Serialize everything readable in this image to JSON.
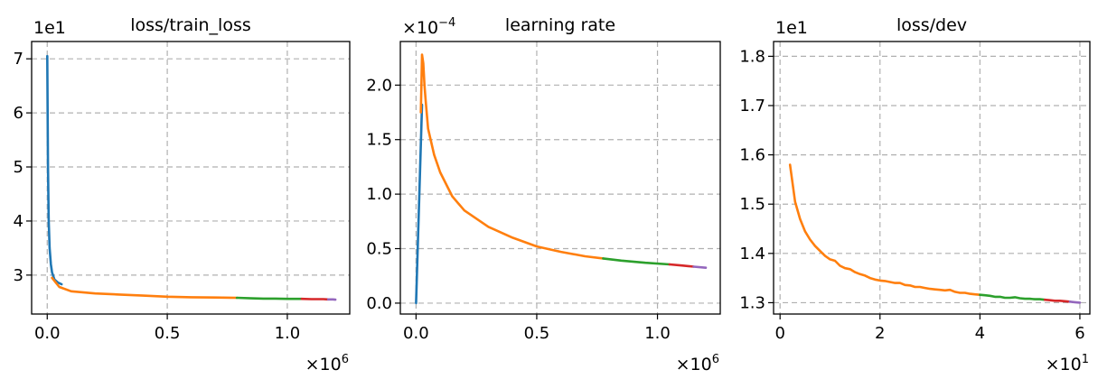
{
  "chart_data": [
    {
      "type": "line",
      "title": "loss/train_loss",
      "xlabel": "",
      "ylabel": "",
      "xlim": [
        -65000,
        1260000
      ],
      "ylim": [
        22.8,
        73.2
      ],
      "x_ticks": [
        0,
        500000,
        1000000
      ],
      "x_tick_labels": [
        "0.0",
        "0.5",
        "1.0"
      ],
      "y_ticks": [
        30,
        40,
        50,
        60,
        70
      ],
      "y_tick_labels": [
        "3",
        "4",
        "5",
        "6",
        "7"
      ],
      "x_offset_label": "×10^6",
      "y_offset_label": "1e1",
      "grid": true,
      "series": [
        {
          "color": "#1f77b4",
          "x": [
            0,
            3000,
            6000,
            10000,
            15000,
            20000,
            30000,
            45000,
            60000
          ],
          "y": [
            70.5,
            50,
            40,
            35,
            32,
            30.5,
            29.2,
            28.6,
            28.3
          ]
        },
        {
          "color": "#ff7f0e",
          "x": [
            20000,
            50000,
            100000,
            200000,
            300000,
            400000,
            500000,
            600000,
            700000,
            790000
          ],
          "y": [
            29.5,
            27.8,
            27.0,
            26.6,
            26.4,
            26.2,
            26.0,
            25.9,
            25.85,
            25.8
          ]
        },
        {
          "color": "#2ca02c",
          "x": [
            790000,
            850000,
            900000,
            950000,
            1000000,
            1060000
          ],
          "y": [
            25.8,
            25.7,
            25.65,
            25.65,
            25.6,
            25.6
          ]
        },
        {
          "color": "#d62728",
          "x": [
            1060000,
            1100000,
            1150000,
            1170000
          ],
          "y": [
            25.6,
            25.55,
            25.55,
            25.5
          ]
        },
        {
          "color": "#9467bd",
          "x": [
            1170000,
            1190000,
            1200000
          ],
          "y": [
            25.5,
            25.5,
            25.45
          ]
        }
      ]
    },
    {
      "type": "line",
      "title": "learning rate",
      "xlabel": "",
      "ylabel": "",
      "xlim": [
        -65000,
        1260000
      ],
      "ylim": [
        -0.1,
        2.4
      ],
      "x_ticks": [
        0,
        500000,
        1000000
      ],
      "x_tick_labels": [
        "0.0",
        "0.5",
        "1.0"
      ],
      "y_ticks": [
        0,
        0.5,
        1.0,
        1.5,
        2.0
      ],
      "y_tick_labels": [
        "0.0",
        "0.5",
        "1.0",
        "1.5",
        "2.0"
      ],
      "x_offset_label": "×10^6",
      "y_offset_label": "×10^−4",
      "grid": true,
      "series": [
        {
          "color": "#1f77b4",
          "x": [
            0,
            25000
          ],
          "y": [
            0.0,
            1.82
          ]
        },
        {
          "color": "#ff7f0e",
          "x": [
            20000,
            25000,
            30000,
            35000,
            40000,
            50000,
            75000,
            100000,
            150000,
            200000,
            300000,
            400000,
            500000,
            600000,
            700000,
            775000
          ],
          "y": [
            1.75,
            2.28,
            2.2,
            2.0,
            1.85,
            1.6,
            1.36,
            1.2,
            0.98,
            0.85,
            0.7,
            0.6,
            0.52,
            0.47,
            0.43,
            0.41
          ]
        },
        {
          "color": "#2ca02c",
          "x": [
            775000,
            850000,
            950000,
            1050000
          ],
          "y": [
            0.41,
            0.39,
            0.37,
            0.355
          ]
        },
        {
          "color": "#d62728",
          "x": [
            1050000,
            1100000,
            1150000
          ],
          "y": [
            0.355,
            0.345,
            0.335
          ]
        },
        {
          "color": "#9467bd",
          "x": [
            1150000,
            1200000
          ],
          "y": [
            0.335,
            0.325
          ]
        }
      ]
    },
    {
      "type": "line",
      "title": "loss/dev",
      "xlabel": "",
      "ylabel": "",
      "xlim": [
        -1.3,
        62.0
      ],
      "ylim": [
        12.77,
        18.3
      ],
      "x_ticks": [
        0,
        20,
        40,
        60
      ],
      "x_tick_labels": [
        "0",
        "2",
        "4",
        "6"
      ],
      "y_ticks": [
        13,
        14,
        15,
        16,
        17,
        18
      ],
      "y_tick_labels": [
        "1.3",
        "1.4",
        "1.5",
        "1.6",
        "1.7",
        "1.8"
      ],
      "x_offset_label": "×10^1",
      "y_offset_label": "1e1",
      "grid": true,
      "series": [
        {
          "color": "#ff7f0e",
          "x": [
            2,
            3,
            4,
            5,
            6,
            7,
            8,
            9,
            10,
            11,
            12,
            13,
            14,
            15,
            16,
            17,
            18,
            19,
            20,
            21,
            22,
            23,
            24,
            25,
            26,
            27,
            28,
            29,
            30,
            31,
            32,
            33,
            34,
            35,
            36,
            37,
            38,
            39,
            40
          ],
          "y": [
            15.8,
            15.05,
            14.7,
            14.45,
            14.28,
            14.15,
            14.05,
            13.95,
            13.88,
            13.85,
            13.75,
            13.7,
            13.68,
            13.62,
            13.58,
            13.55,
            13.5,
            13.47,
            13.45,
            13.44,
            13.42,
            13.4,
            13.4,
            13.36,
            13.35,
            13.32,
            13.32,
            13.3,
            13.28,
            13.27,
            13.26,
            13.25,
            13.26,
            13.22,
            13.2,
            13.2,
            13.18,
            13.17,
            13.16
          ]
        },
        {
          "color": "#2ca02c",
          "x": [
            40,
            41,
            42,
            43,
            44,
            45,
            46,
            47,
            48,
            49,
            50,
            51,
            52,
            53
          ],
          "y": [
            13.16,
            13.15,
            13.14,
            13.12,
            13.12,
            13.1,
            13.1,
            13.11,
            13.09,
            13.08,
            13.08,
            13.07,
            13.07,
            13.06
          ]
        },
        {
          "color": "#d62728",
          "x": [
            53,
            54,
            55,
            56,
            57,
            58
          ],
          "y": [
            13.06,
            13.05,
            13.04,
            13.04,
            13.03,
            13.02
          ]
        },
        {
          "color": "#9467bd",
          "x": [
            58,
            59,
            60
          ],
          "y": [
            13.02,
            13.01,
            13.0
          ]
        }
      ]
    }
  ]
}
